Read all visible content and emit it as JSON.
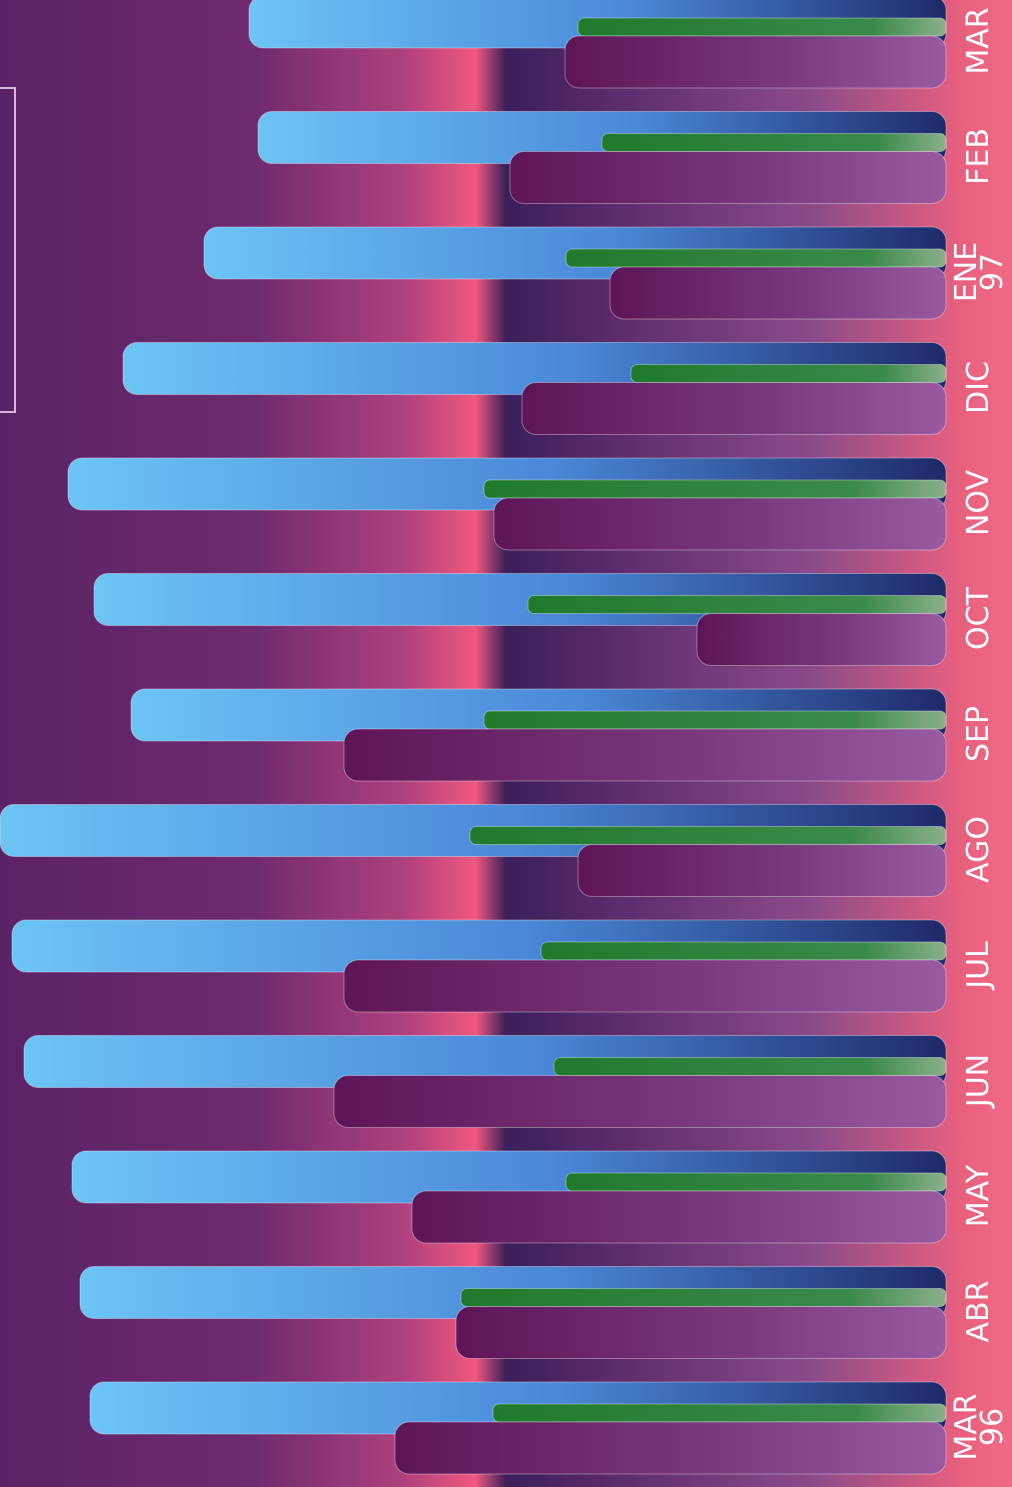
{
  "chart_data": {
    "type": "bar",
    "orientation": "horizontal",
    "categories": [
      [
        "MAR",
        "96"
      ],
      [
        "ABR"
      ],
      [
        "MAY"
      ],
      [
        "JUN"
      ],
      [
        "JUL"
      ],
      [
        "AGO"
      ],
      [
        "SEP"
      ],
      [
        "OCT"
      ],
      [
        "NOV"
      ],
      [
        "DIC"
      ],
      [
        "ENE",
        "97"
      ],
      [
        "FEB"
      ],
      [
        "MAR"
      ]
    ],
    "axis_ticks_shown": false,
    "grid": false,
    "series": [
      {
        "color": "#5fb6f2",
        "values": [
          856,
          866,
          874,
          922,
          934,
          946,
          815,
          852,
          878,
          823,
          742,
          688,
          697
        ]
      },
      {
        "color": "#2f8a3c",
        "values": [
          453,
          485,
          380,
          392,
          405,
          476,
          462,
          418,
          462,
          315,
          380,
          344,
          368
        ]
      },
      {
        "color": "#6b1e5e",
        "values": [
          551,
          490,
          534,
          612,
          602,
          368,
          602,
          249,
          452,
          424,
          336,
          436,
          381
        ]
      }
    ],
    "colors": {
      "blue_bar": "#5fb6f2",
      "green_bar": "#2f8a3c",
      "purple_bar": "#6b1e5e",
      "label": "#ffffff"
    }
  }
}
